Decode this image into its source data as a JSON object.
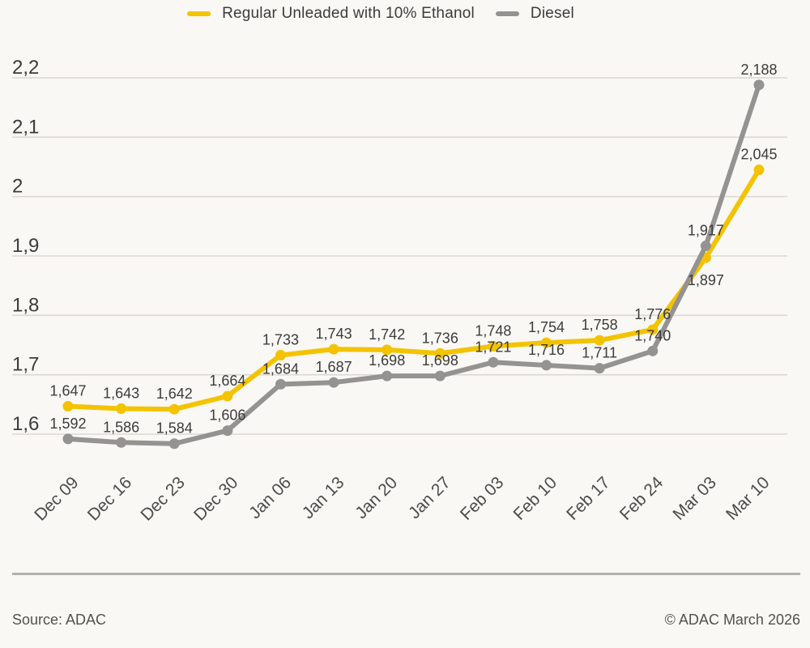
{
  "legend": {
    "items": [
      {
        "label": "Regular Unleaded with 10% Ethanol",
        "color": "#f3c300"
      },
      {
        "label": "Diesel",
        "color": "#949391"
      }
    ]
  },
  "chart_data": {
    "type": "line",
    "title": "",
    "xlabel": "",
    "ylabel": "",
    "grid": true,
    "legend_position": "top-center",
    "ylim": [
      1.55,
      2.26
    ],
    "categories": [
      "Dec 09",
      "Dec 16",
      "Dec 23",
      "Dec 30",
      "Jan 06",
      "Jan 13",
      "Jan 20",
      "Jan 27",
      "Feb 03",
      "Feb 10",
      "Feb 17",
      "Feb 24",
      "Mar 03",
      "Mar 10"
    ],
    "y_ticks": [
      {
        "value": 1.6,
        "label": "1,6"
      },
      {
        "value": 1.7,
        "label": "1,7"
      },
      {
        "value": 1.8,
        "label": "1,8"
      },
      {
        "value": 1.9,
        "label": "1,9"
      },
      {
        "value": 2.0,
        "label": "2"
      },
      {
        "value": 2.1,
        "label": "2,1"
      },
      {
        "value": 2.2,
        "label": "2,2"
      }
    ],
    "series": [
      {
        "name": "Regular Unleaded with 10% Ethanol",
        "color": "#f3c300",
        "values": [
          1.647,
          1.643,
          1.642,
          1.664,
          1.733,
          1.743,
          1.742,
          1.736,
          1.748,
          1.754,
          1.758,
          1.776,
          1.897,
          2.045
        ],
        "point_labels": [
          "1,647",
          "1,643",
          "1,642",
          "1,664",
          "1,733",
          "1,743",
          "1,742",
          "1,736",
          "1,748",
          "1,754",
          "1,758",
          "1,776",
          "1,897",
          "2,045"
        ]
      },
      {
        "name": "Diesel",
        "color": "#949391",
        "values": [
          1.592,
          1.586,
          1.584,
          1.606,
          1.684,
          1.687,
          1.698,
          1.698,
          1.721,
          1.716,
          1.711,
          1.74,
          1.917,
          2.188
        ],
        "point_labels": [
          "1,592",
          "1,586",
          "1,584",
          "1,606",
          "1,684",
          "1,687",
          "1,698",
          "1,698",
          "1,721",
          "1,716",
          "1,711",
          "1,740",
          "1,917",
          "2,188"
        ]
      }
    ]
  },
  "footer": {
    "source": "Source: ADAC",
    "copyright": "© ADAC March 2026"
  },
  "colors": {
    "background": "#faf8f4",
    "grid": "#dcd9d4",
    "axis_text": "#3c3c3b",
    "x_tick_text": "#4c4c4b",
    "footer_text": "#52524f",
    "divider": "#b3b1ad"
  }
}
